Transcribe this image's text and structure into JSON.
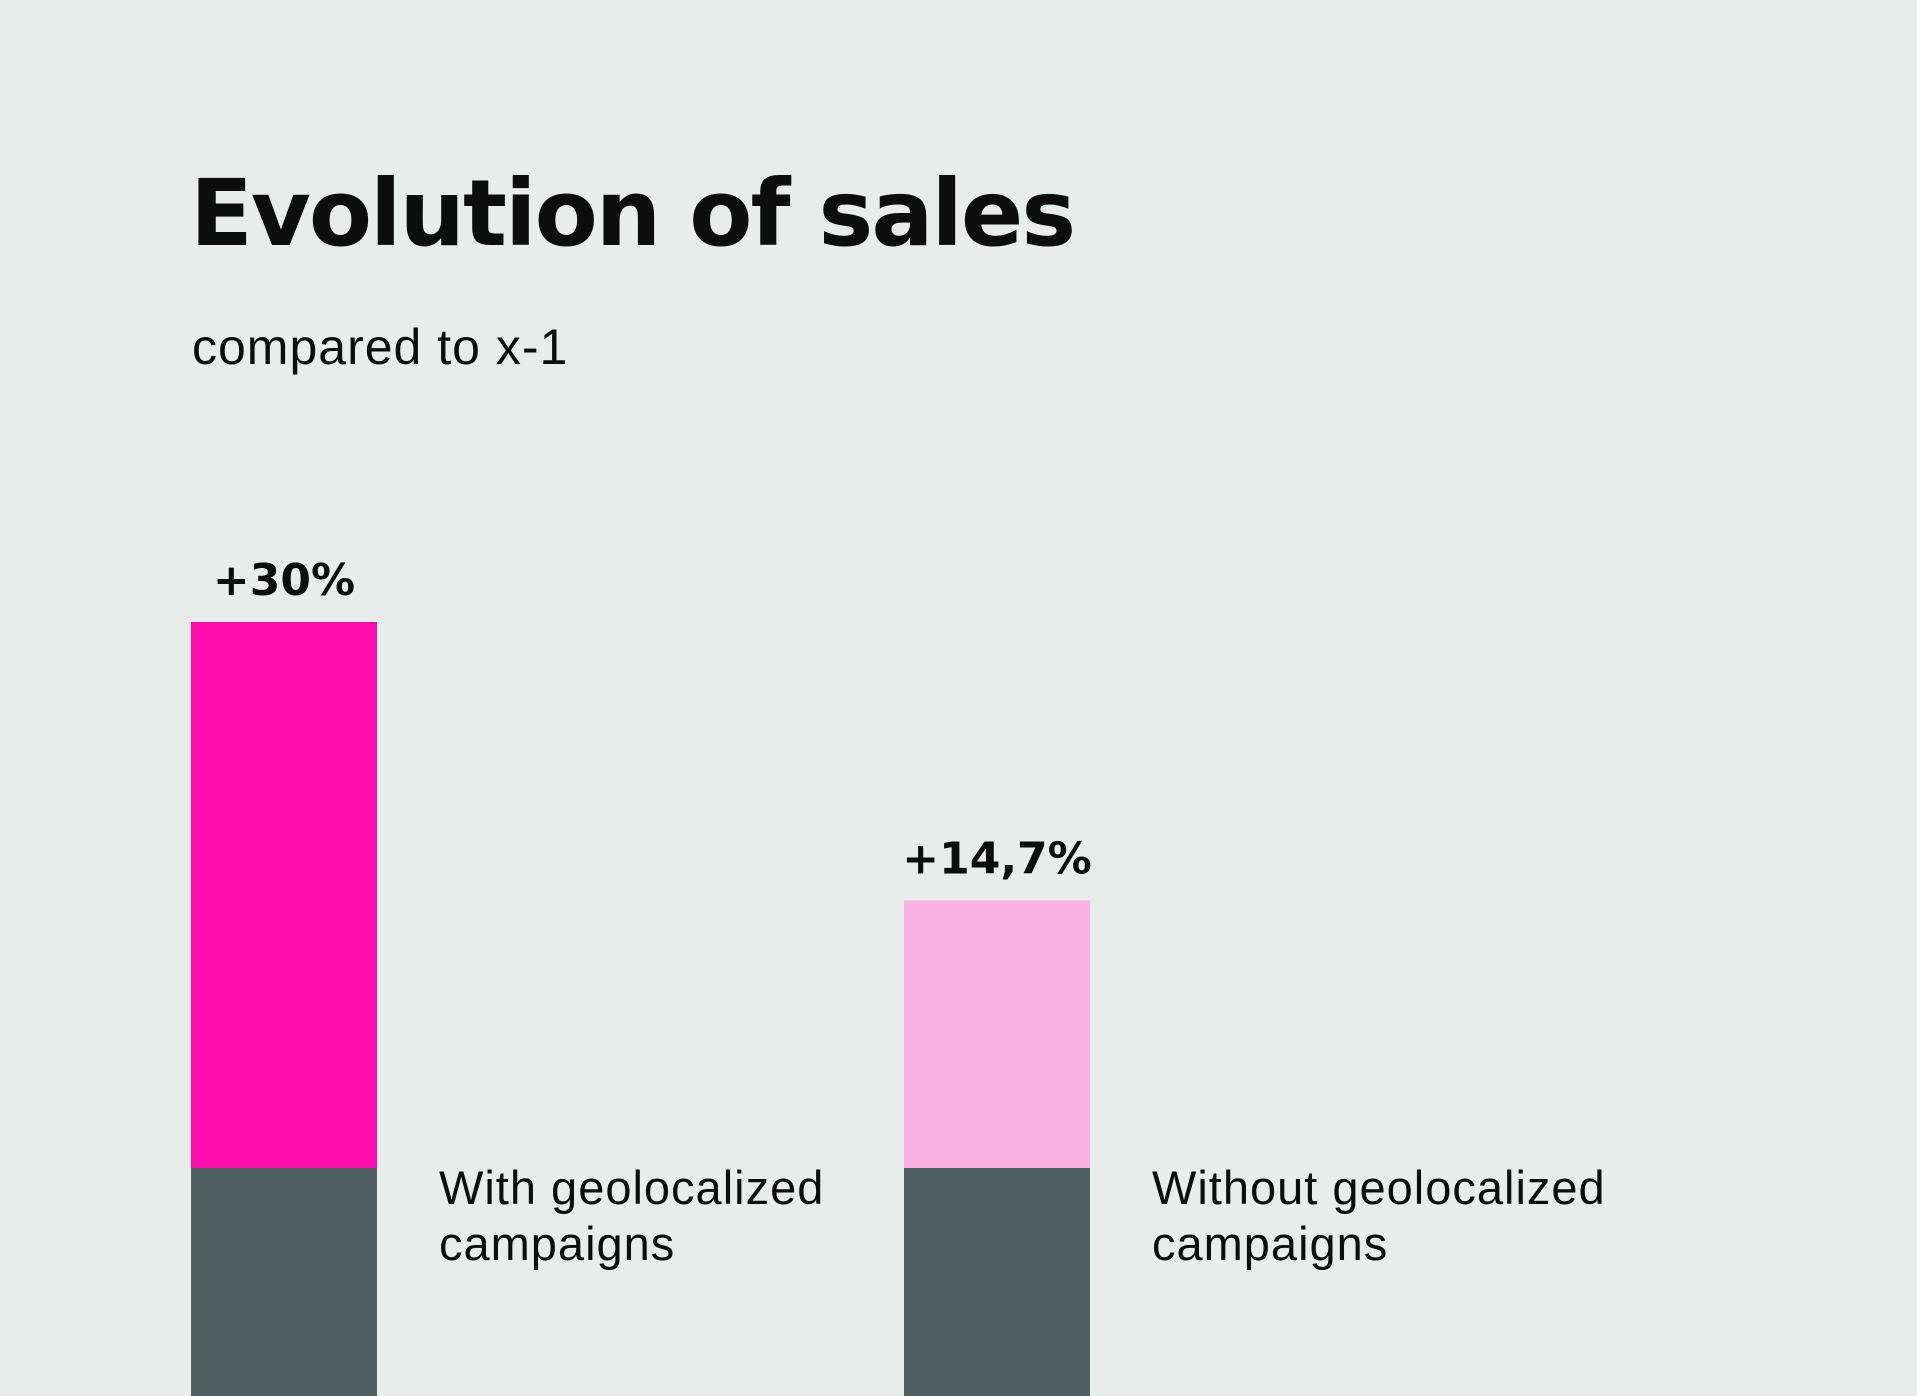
{
  "title": "Evolution of sales",
  "subtitle": "compared to x-1",
  "colors": {
    "background": "#E8EDEB",
    "base": "#4F5E60",
    "series_with": "#FF0DAB",
    "series_without": "#F9B2E1"
  },
  "chart_data": {
    "type": "bar",
    "title": "Evolution of sales",
    "subtitle": "compared to x-1",
    "categories": [
      "With geolocalized campaigns",
      "Without geolocalized campaigns"
    ],
    "values": [
      30,
      14.7
    ],
    "value_labels": [
      "+30%",
      "+14,7%"
    ],
    "category_labels": [
      [
        "With geolocalized",
        "campaigns"
      ],
      [
        "Without geolocalized",
        "campaigns"
      ]
    ],
    "unit": "%",
    "xlabel": "",
    "ylabel": "",
    "grid": false,
    "legend": "none",
    "colors": [
      "#FF0DAB",
      "#F9B2E1"
    ]
  }
}
